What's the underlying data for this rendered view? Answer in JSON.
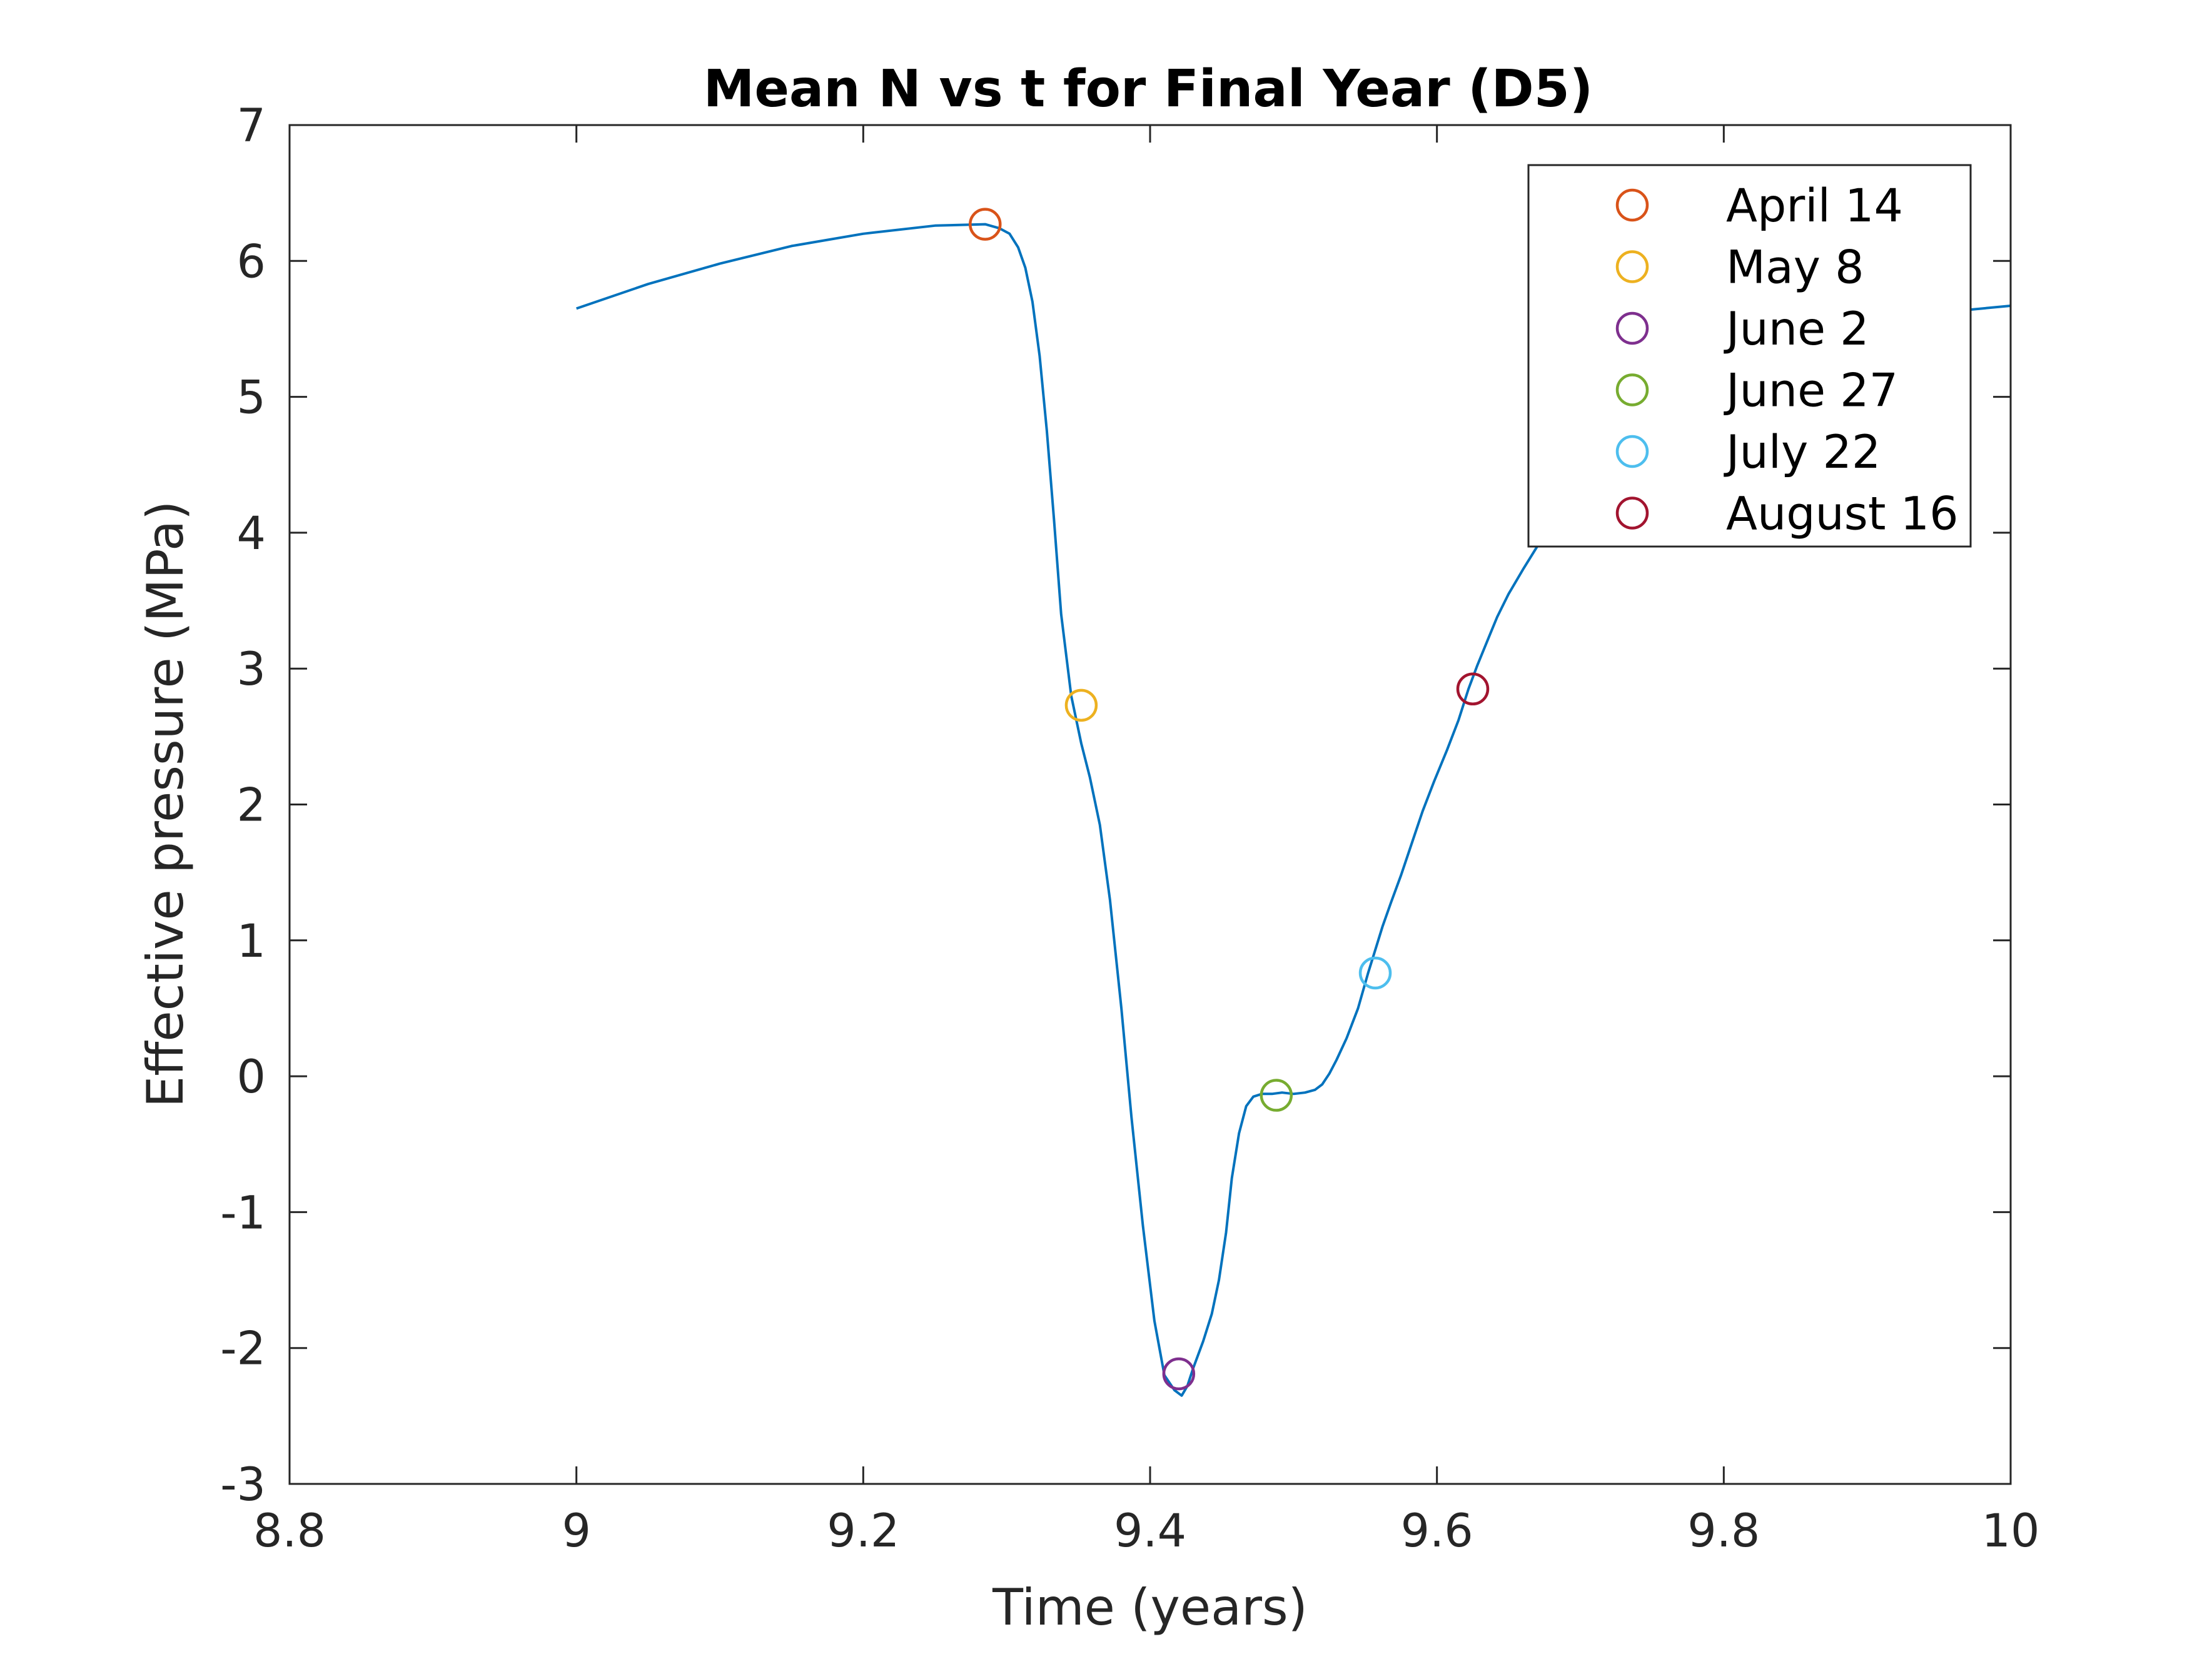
{
  "chart_data": {
    "type": "line",
    "title": "Mean N vs t for Final Year (D5)",
    "xlabel": "Time (years)",
    "ylabel": "Effective pressure (MPa)",
    "xlim": [
      8.8,
      10
    ],
    "ylim": [
      -3,
      7
    ],
    "xticks": [
      8.8,
      9,
      9.2,
      9.4,
      9.6,
      9.8,
      10
    ],
    "xtick_labels": [
      "8.8",
      "9",
      "9.2",
      "9.4",
      "9.6",
      "9.8",
      "10"
    ],
    "yticks": [
      -3,
      -2,
      -1,
      0,
      1,
      2,
      3,
      4,
      5,
      6,
      7
    ],
    "ytick_labels": [
      "-3",
      "-2",
      "-1",
      "0",
      "1",
      "2",
      "3",
      "4",
      "5",
      "6",
      "7"
    ],
    "grid": false,
    "legend_position": "top-right",
    "series": [
      {
        "kind": "line",
        "color": "#0072BD",
        "x": [
          9.0,
          9.05,
          9.1,
          9.15,
          9.2,
          9.25,
          9.285,
          9.295,
          9.302,
          9.308,
          9.313,
          9.318,
          9.323,
          9.328,
          9.333,
          9.338,
          9.345,
          9.352,
          9.358,
          9.365,
          9.372,
          9.38,
          9.387,
          9.395,
          9.403,
          9.41,
          9.417,
          9.422,
          9.426,
          9.43,
          9.437,
          9.443,
          9.448,
          9.453,
          9.457,
          9.462,
          9.467,
          9.472,
          9.478,
          9.485,
          9.492,
          9.5,
          9.508,
          9.515,
          9.52,
          9.525,
          9.53,
          9.537,
          9.545,
          9.552,
          9.557,
          9.562,
          9.568,
          9.575,
          9.582,
          9.59,
          9.598,
          9.607,
          9.615,
          9.622,
          9.628,
          9.635,
          9.642,
          9.65,
          9.66,
          9.67,
          9.68,
          9.7,
          9.72,
          9.75,
          9.78,
          9.8,
          9.85,
          9.9,
          9.95,
          10.0
        ],
        "y": [
          5.65,
          5.83,
          5.98,
          6.11,
          6.2,
          6.26,
          6.27,
          6.24,
          6.2,
          6.1,
          5.95,
          5.7,
          5.3,
          4.75,
          4.1,
          3.4,
          2.8,
          2.45,
          2.2,
          1.85,
          1.3,
          0.5,
          -0.3,
          -1.1,
          -1.8,
          -2.2,
          -2.31,
          -2.35,
          -2.28,
          -2.15,
          -1.95,
          -1.75,
          -1.5,
          -1.15,
          -0.75,
          -0.42,
          -0.22,
          -0.15,
          -0.13,
          -0.13,
          -0.12,
          -0.13,
          -0.12,
          -0.1,
          -0.06,
          0.02,
          0.12,
          0.28,
          0.5,
          0.76,
          0.93,
          1.1,
          1.28,
          1.48,
          1.7,
          1.95,
          2.17,
          2.4,
          2.62,
          2.85,
          3.02,
          3.2,
          3.38,
          3.55,
          3.73,
          3.9,
          4.05,
          4.33,
          4.55,
          4.85,
          5.08,
          5.2,
          5.42,
          5.55,
          5.62,
          5.67
        ]
      },
      {
        "kind": "marker",
        "name": "April 14",
        "color": "#D95319",
        "x": 9.285,
        "y": 6.27
      },
      {
        "kind": "marker",
        "name": "May 8",
        "color": "#EDB120",
        "x": 9.352,
        "y": 2.73
      },
      {
        "kind": "marker",
        "name": "June 2",
        "color": "#7E2F8E",
        "x": 9.42,
        "y": -2.19
      },
      {
        "kind": "marker",
        "name": "June 27",
        "color": "#77AC30",
        "x": 9.488,
        "y": -0.14
      },
      {
        "kind": "marker",
        "name": "July 22",
        "color": "#4DBEEE",
        "x": 9.557,
        "y": 0.76
      },
      {
        "kind": "marker",
        "name": "August 16",
        "color": "#A2142F",
        "x": 9.625,
        "y": 2.85
      }
    ]
  }
}
